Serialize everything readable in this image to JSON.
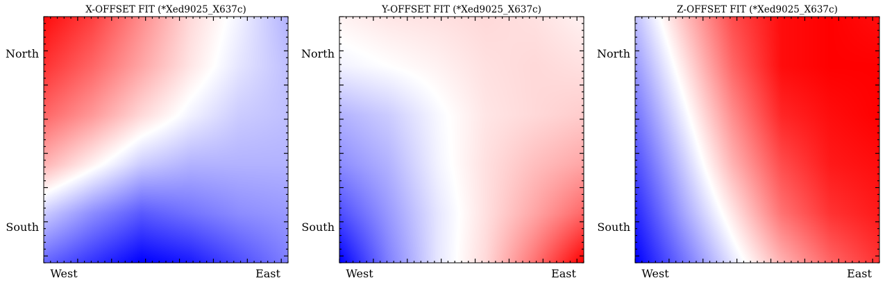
{
  "chart_data": [
    {
      "type": "heatmap",
      "title": "X-OFFSET FIT (*Xed9025_X637c)",
      "x_tick_labels": [
        "West",
        "East"
      ],
      "y_tick_labels": [
        "North",
        "South"
      ],
      "colormap": "bwr",
      "colors": {
        "low": "#0000ff",
        "mid": "#ffffff",
        "high": "#ff0000"
      },
      "grid": false,
      "pattern": "red toward top-left, white band curving from lower-left to upper-right, blue toward bottom-center and right",
      "x": [
        0,
        0.2,
        0.4,
        0.6,
        0.8,
        1.0
      ],
      "y": [
        0,
        0.2,
        0.4,
        0.6,
        0.8,
        1.0
      ],
      "values": [
        [
          -0.6,
          -0.8,
          -1.0,
          -0.9,
          -0.7,
          -0.5
        ],
        [
          -0.2,
          -0.45,
          -0.65,
          -0.55,
          -0.45,
          -0.4
        ],
        [
          0.3,
          0.05,
          -0.2,
          -0.3,
          -0.3,
          -0.3
        ],
        [
          0.6,
          0.4,
          0.15,
          -0.05,
          -0.2,
          -0.25
        ],
        [
          0.8,
          0.6,
          0.35,
          0.1,
          -0.1,
          -0.25
        ],
        [
          0.95,
          0.75,
          0.45,
          0.15,
          -0.05,
          -0.3
        ]
      ]
    },
    {
      "type": "heatmap",
      "title": "Y-OFFSET FIT (*Xed9025_X637c)",
      "x_tick_labels": [
        "West",
        "East"
      ],
      "y_tick_labels": [
        "North",
        "South"
      ],
      "colormap": "bwr",
      "colors": {
        "low": "#0000ff",
        "mid": "#ffffff",
        "high": "#ff0000"
      },
      "grid": false,
      "pattern": "blue at bottom-left, red at bottom-right, light red along top, white band curving from top-left down to bottom-center",
      "x": [
        0,
        0.2,
        0.4,
        0.6,
        0.8,
        1.0
      ],
      "y": [
        0,
        0.2,
        0.4,
        0.6,
        0.8,
        1.0
      ],
      "values": [
        [
          -1.0,
          -0.5,
          -0.1,
          0.15,
          0.55,
          1.0
        ],
        [
          -0.7,
          -0.4,
          -0.1,
          0.12,
          0.35,
          0.6
        ],
        [
          -0.45,
          -0.3,
          -0.05,
          0.12,
          0.25,
          0.35
        ],
        [
          -0.3,
          -0.2,
          -0.03,
          0.1,
          0.15,
          0.2
        ],
        [
          -0.05,
          0.0,
          0.05,
          0.12,
          0.15,
          0.12
        ],
        [
          0.05,
          0.1,
          0.12,
          0.15,
          0.12,
          0.05
        ]
      ]
    },
    {
      "type": "heatmap",
      "title": "Z-OFFSET FIT (*Xed9025_X637c)",
      "x_tick_labels": [
        "West",
        "East"
      ],
      "y_tick_labels": [
        "North",
        "South"
      ],
      "colormap": "bwr",
      "colors": {
        "low": "#0000ff",
        "mid": "#ffffff",
        "high": "#ff0000"
      },
      "grid": false,
      "pattern": "blue at lower-left, red across upper-right, diagonal white band from top-left area down to bottom-center",
      "x": [
        0,
        0.2,
        0.4,
        0.6,
        0.8,
        1.0
      ],
      "y": [
        0,
        0.2,
        0.4,
        0.6,
        0.8,
        1.0
      ],
      "values": [
        [
          -1.0,
          -0.55,
          -0.1,
          0.3,
          0.6,
          0.8
        ],
        [
          -0.85,
          -0.35,
          0.1,
          0.55,
          0.8,
          0.9
        ],
        [
          -0.7,
          -0.2,
          0.3,
          0.7,
          0.9,
          0.95
        ],
        [
          -0.55,
          -0.05,
          0.45,
          0.85,
          0.95,
          1.0
        ],
        [
          -0.4,
          0.1,
          0.6,
          0.95,
          1.0,
          1.0
        ],
        [
          -0.25,
          0.25,
          0.7,
          0.95,
          1.0,
          0.95
        ]
      ]
    }
  ]
}
